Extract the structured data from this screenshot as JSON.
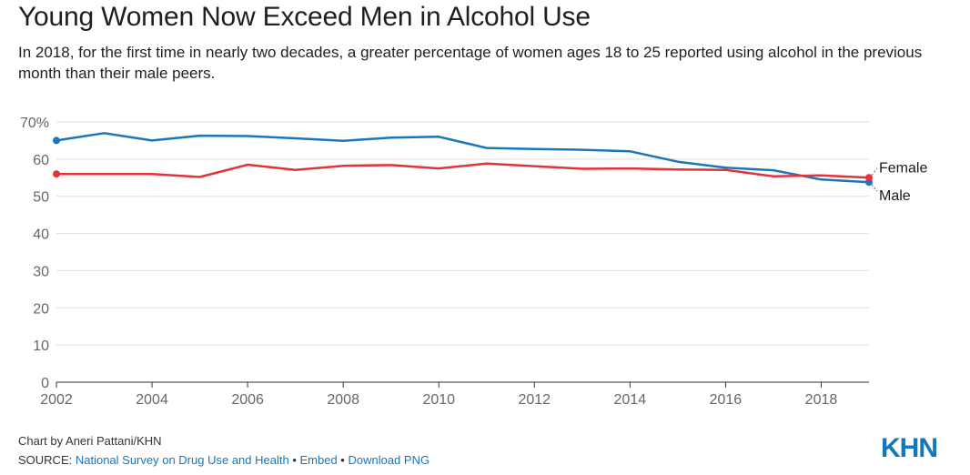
{
  "title": "Young Women Now Exceed Men in Alcohol Use",
  "subtitle": "In 2018, for the first time in nearly two decades, a greater percentage of women ages 18 to 25 reported using alcohol in the previous month than their male peers.",
  "footer": {
    "credit": "Chart by Aneri Pattani/KHN",
    "source_prefix": "SOURCE: ",
    "source_link": "National Survey on Drug Use and Health",
    "separator": " • ",
    "embed": "Embed",
    "download": "Download PNG"
  },
  "logo": "KHN",
  "colors": {
    "male": "#1a76bb",
    "female": "#e0333c",
    "grid": "#dddddd",
    "link": "#1478b8"
  },
  "chart_data": {
    "type": "line",
    "title": "Young Women Now Exceed Men in Alcohol Use",
    "xlabel": "",
    "ylabel": "",
    "x": [
      2002,
      2003,
      2004,
      2005,
      2006,
      2007,
      2008,
      2009,
      2010,
      2011,
      2012,
      2013,
      2014,
      2015,
      2016,
      2017,
      2018,
      2019
    ],
    "xlim": [
      2002,
      2019
    ],
    "ylim": [
      0,
      70
    ],
    "yticks": [
      0,
      10,
      20,
      30,
      40,
      50,
      60,
      70
    ],
    "ytick_labels": [
      "0",
      "10",
      "20",
      "30",
      "40",
      "50",
      "60",
      "70%"
    ],
    "xticks": [
      2002,
      2004,
      2006,
      2008,
      2010,
      2012,
      2014,
      2016,
      2018
    ],
    "xtick_labels": [
      "2002",
      "2004",
      "2006",
      "2008",
      "2010",
      "2012",
      "2014",
      "2016",
      "2018"
    ],
    "grid": true,
    "legend": "inline labels at line ends",
    "series": [
      {
        "name": "Male",
        "color": "#1a76bb",
        "values": [
          65.0,
          67.0,
          65.0,
          66.3,
          66.2,
          65.6,
          64.9,
          65.8,
          66.0,
          63.0,
          62.7,
          62.5,
          62.1,
          59.3,
          57.7,
          57.0,
          54.5,
          53.8
        ]
      },
      {
        "name": "Female",
        "color": "#e0333c",
        "values": [
          56.0,
          56.0,
          56.0,
          55.2,
          58.5,
          57.1,
          58.2,
          58.4,
          57.5,
          58.8,
          58.1,
          57.4,
          57.5,
          57.2,
          57.1,
          55.4,
          55.6,
          55.0
        ]
      }
    ]
  }
}
